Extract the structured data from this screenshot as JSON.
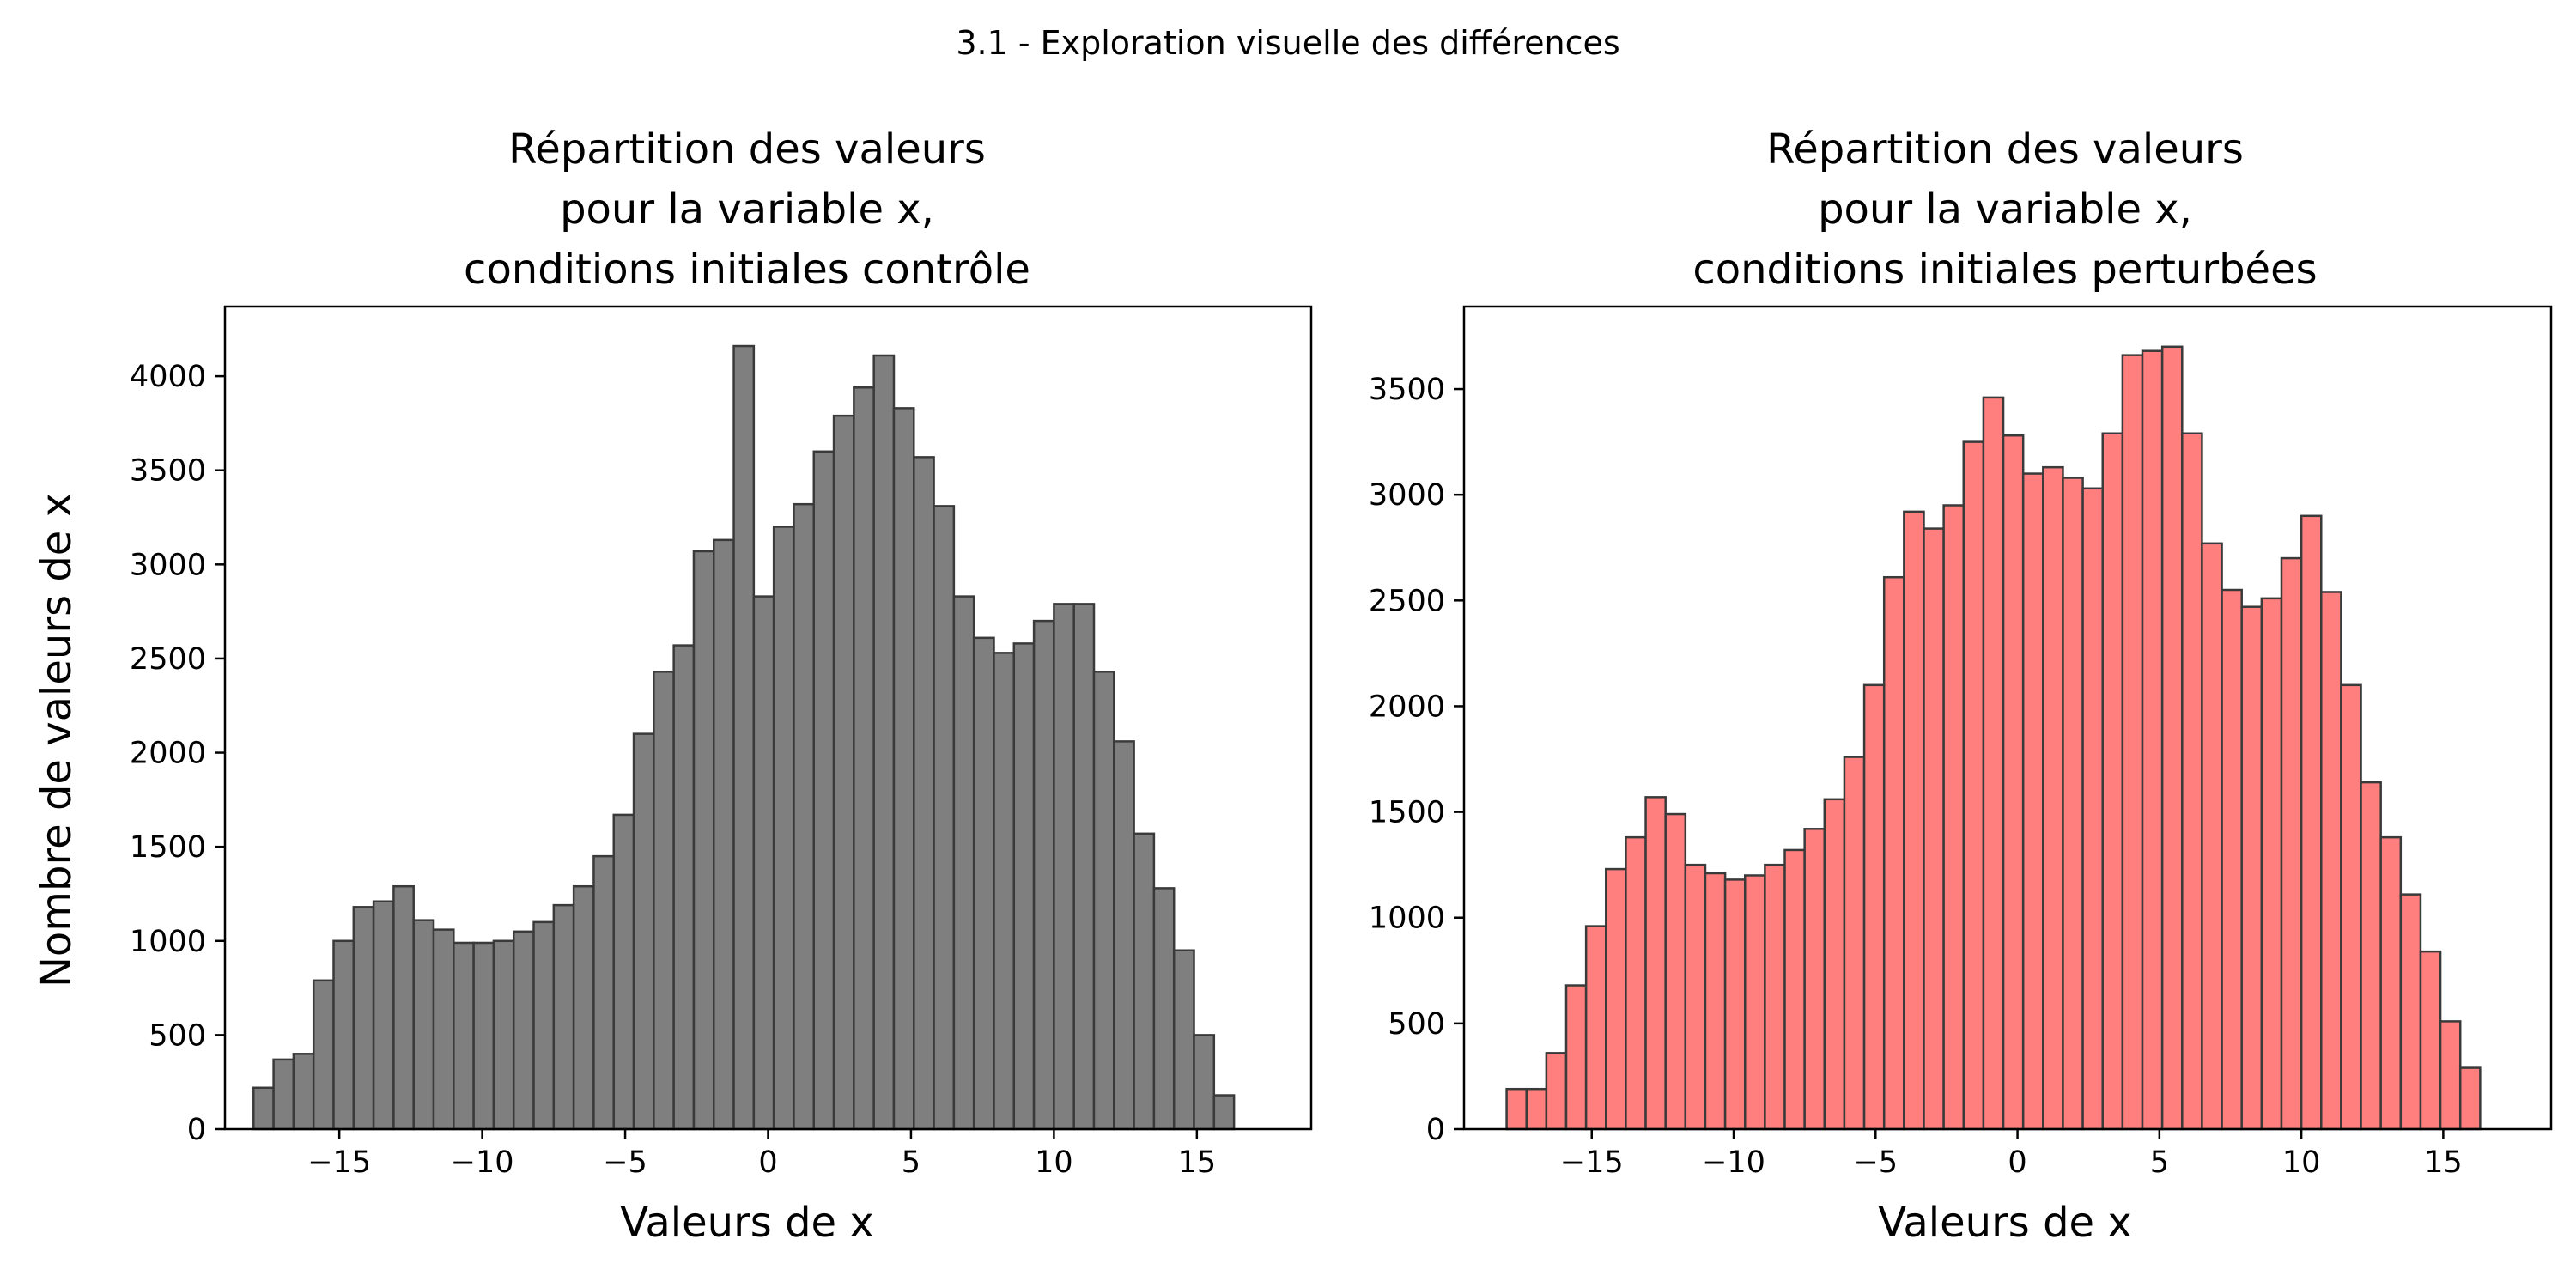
{
  "figure": {
    "suptitle": "3.1 - Exploration visuelle des différences"
  },
  "chart_data": [
    {
      "type": "bar",
      "title_lines": [
        "Répartition des valeurs",
        "pour la variable x,",
        "conditions initiales contrôle"
      ],
      "xlabel": "Valeurs de x",
      "ylabel": "Nombre de valeurs de x",
      "xlim": [
        -19,
        19
      ],
      "ylim": [
        0,
        4370
      ],
      "xticks": [
        -15,
        -10,
        -5,
        0,
        5,
        10,
        15
      ],
      "xtick_labels": [
        "−15",
        "−10",
        "−5",
        "0",
        "5",
        "10",
        "15"
      ],
      "yticks": [
        0,
        500,
        1000,
        1500,
        2000,
        2500,
        3000,
        3500,
        4000
      ],
      "bin_start": -18,
      "bin_width": 0.7,
      "values": [
        220,
        370,
        400,
        790,
        1000,
        1180,
        1210,
        1290,
        1110,
        1060,
        990,
        990,
        1000,
        1050,
        1100,
        1190,
        1290,
        1450,
        1670,
        2100,
        2430,
        2570,
        3070,
        3130,
        4160,
        2830,
        3200,
        3320,
        3600,
        3790,
        3940,
        4110,
        3830,
        3570,
        3310,
        2830,
        2610,
        2530,
        2580,
        2700,
        2790,
        2790,
        2430,
        2060,
        1570,
        1280,
        950,
        500,
        180
      ],
      "bar_color": "#7f7f7f",
      "edge_color": "#3a3a3a",
      "grid": false
    },
    {
      "type": "bar",
      "title_lines": [
        "Répartition des valeurs",
        "pour la variable x,",
        "conditions initiales perturbées"
      ],
      "xlabel": "Valeurs de x",
      "ylabel": "",
      "xlim": [
        -19.5,
        18.8
      ],
      "ylim": [
        0,
        3890
      ],
      "xticks": [
        -15,
        -10,
        -5,
        0,
        5,
        10,
        15
      ],
      "xtick_labels": [
        "−15",
        "−10",
        "−5",
        "0",
        "5",
        "10",
        "15"
      ],
      "yticks": [
        0,
        500,
        1000,
        1500,
        2000,
        2500,
        3000,
        3500
      ],
      "bin_start": -18,
      "bin_width": 0.7,
      "values": [
        190,
        190,
        360,
        680,
        960,
        1230,
        1380,
        1570,
        1490,
        1250,
        1210,
        1180,
        1200,
        1250,
        1320,
        1420,
        1560,
        1760,
        2100,
        2610,
        2920,
        2840,
        2950,
        3250,
        3460,
        3280,
        3100,
        3130,
        3080,
        3030,
        3290,
        3660,
        3680,
        3700,
        3290,
        2770,
        2550,
        2470,
        2510,
        2700,
        2900,
        2540,
        2100,
        1640,
        1380,
        1110,
        840,
        510,
        290
      ],
      "bar_color": "#ff7f7f",
      "edge_color": "#3a3a3a",
      "grid": false
    }
  ]
}
